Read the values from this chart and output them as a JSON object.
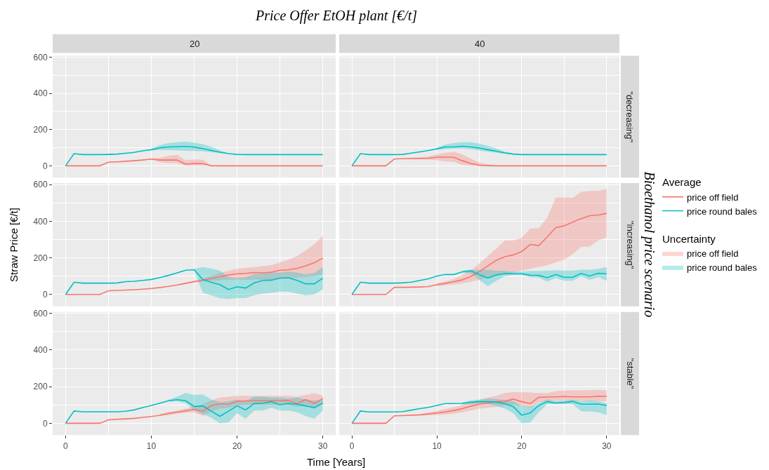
{
  "chart_data": [
    {
      "type": "line",
      "title": "20",
      "annotations": [
        "Price Offer EtOH plant [€/t]"
      ],
      "x": [
        0,
        1,
        2,
        3,
        4,
        5,
        6,
        7,
        8,
        9,
        10,
        11,
        12,
        13,
        14,
        15,
        16,
        17,
        18,
        19,
        20,
        21,
        22,
        23,
        24,
        25,
        26,
        27,
        28,
        29,
        30
      ],
      "xlim": [
        -1.5,
        31.5
      ],
      "ylim": [
        -65,
        608
      ],
      "xticks": [
        0,
        10,
        20,
        30
      ],
      "yticks": [
        0,
        200,
        400,
        600
      ],
      "grid": true,
      "tick_labels": "y",
      "legend": "right",
      "legend_title": "Average",
      "series": [
        {
          "name": "price off field",
          "color": "#f8766d",
          "values": [
            0,
            0,
            0,
            0,
            0,
            20,
            22,
            25,
            28,
            32,
            37,
            32,
            32,
            32,
            9,
            13,
            12,
            0,
            0,
            0,
            0,
            0,
            0,
            0,
            0,
            0,
            0,
            0,
            0,
            0,
            0
          ],
          "lower": [
            null,
            null,
            null,
            null,
            null,
            null,
            null,
            null,
            null,
            null,
            35,
            20,
            15,
            15,
            0,
            0,
            0,
            0,
            null,
            null,
            null,
            null,
            null,
            null,
            null,
            null,
            null,
            null,
            null,
            null,
            null
          ],
          "upper": [
            null,
            null,
            null,
            null,
            null,
            null,
            null,
            null,
            null,
            null,
            40,
            45,
            55,
            60,
            30,
            35,
            33,
            2,
            null,
            null,
            null,
            null,
            null,
            null,
            null,
            null,
            null,
            null,
            null,
            null,
            null
          ]
        },
        {
          "name": "price round bales",
          "color": "#00bfc4",
          "values": [
            0,
            67,
            62,
            62,
            62,
            63,
            65,
            69,
            74,
            83,
            89,
            99,
            104,
            105,
            107,
            103,
            95,
            85,
            75,
            67,
            63,
            62,
            62,
            62,
            62,
            62,
            62,
            62,
            62,
            62,
            62
          ],
          "lower": [
            null,
            null,
            null,
            null,
            null,
            null,
            null,
            null,
            null,
            null,
            85,
            88,
            87,
            85,
            83,
            82,
            80,
            75,
            70,
            65,
            null,
            null,
            null,
            null,
            null,
            null,
            null,
            null,
            null,
            null,
            null
          ],
          "upper": [
            null,
            null,
            null,
            null,
            null,
            null,
            null,
            null,
            null,
            null,
            95,
            115,
            125,
            130,
            133,
            128,
            120,
            105,
            85,
            70,
            null,
            null,
            null,
            null,
            null,
            null,
            null,
            null,
            null,
            null,
            null
          ]
        }
      ]
    },
    {
      "type": "line",
      "title": "40",
      "annotations": [
        "\"decreasing\""
      ],
      "x": [
        0,
        1,
        2,
        3,
        4,
        5,
        6,
        7,
        8,
        9,
        10,
        11,
        12,
        13,
        14,
        15,
        16,
        17,
        18,
        19,
        20,
        21,
        22,
        23,
        24,
        25,
        26,
        27,
        28,
        29,
        30
      ],
      "xlim": [
        -1.5,
        31.5
      ],
      "ylim": [
        -65,
        608
      ],
      "xticks": [
        0,
        10,
        20,
        30
      ],
      "yticks": [
        0,
        200,
        400,
        600
      ],
      "grid": true,
      "tick_labels": false,
      "legend": "right",
      "legend_title": "Uncertainty",
      "series": [
        {
          "name": "price off field",
          "color": "#f8766d",
          "values": [
            0,
            0,
            0,
            0,
            0,
            38,
            39,
            40,
            41,
            42,
            48,
            48,
            47,
            28,
            13,
            3,
            1,
            0,
            0,
            0,
            0,
            0,
            0,
            0,
            0,
            0,
            0,
            0,
            0,
            0,
            0
          ],
          "lower": [
            null,
            null,
            null,
            null,
            null,
            null,
            36,
            36,
            35,
            33,
            30,
            25,
            22,
            5,
            0,
            0,
            0,
            0,
            null,
            null,
            null,
            null,
            null,
            null,
            null,
            null,
            null,
            null,
            null,
            null,
            null
          ],
          "upper": [
            null,
            null,
            null,
            null,
            null,
            null,
            42,
            44,
            47,
            52,
            62,
            72,
            78,
            62,
            40,
            18,
            8,
            1,
            null,
            null,
            null,
            null,
            null,
            null,
            null,
            null,
            null,
            null,
            null,
            null,
            null
          ]
        },
        {
          "name": "price round bales",
          "color": "#00bfc4",
          "values": [
            0,
            67,
            62,
            62,
            62,
            62,
            63,
            70,
            77,
            85,
            94,
            104,
            104,
            108,
            104,
            98,
            89,
            81,
            71,
            65,
            62,
            62,
            62,
            62,
            62,
            62,
            62,
            62,
            62,
            62,
            62
          ],
          "lower": [
            null,
            null,
            null,
            null,
            null,
            null,
            null,
            null,
            null,
            null,
            88,
            92,
            95,
            95,
            92,
            85,
            78,
            72,
            66,
            63,
            null,
            null,
            null,
            null,
            null,
            null,
            null,
            null,
            null,
            null,
            null
          ],
          "upper": [
            null,
            null,
            null,
            null,
            null,
            null,
            null,
            null,
            null,
            null,
            100,
            118,
            125,
            130,
            130,
            122,
            110,
            95,
            78,
            68,
            null,
            null,
            null,
            null,
            null,
            null,
            null,
            null,
            null,
            null,
            null
          ]
        }
      ]
    },
    {
      "type": "line",
      "ylabel": "Straw Price [€/t]",
      "x": [
        0,
        1,
        2,
        3,
        4,
        5,
        6,
        7,
        8,
        9,
        10,
        11,
        12,
        13,
        14,
        15,
        16,
        17,
        18,
        19,
        20,
        21,
        22,
        23,
        24,
        25,
        26,
        27,
        28,
        29,
        30
      ],
      "xlim": [
        -1.5,
        31.5
      ],
      "ylim": [
        -65,
        608
      ],
      "xticks": [
        0,
        10,
        20,
        30
      ],
      "yticks": [
        0,
        200,
        400,
        600
      ],
      "grid": true,
      "tick_labels": "y",
      "series": [
        {
          "color": "#f8766d",
          "values": [
            0,
            0,
            0,
            0,
            0,
            20,
            22,
            24,
            26,
            29,
            33,
            38,
            44,
            52,
            61,
            70,
            77,
            87,
            97,
            106,
            113,
            115,
            120,
            118,
            122,
            132,
            135,
            142,
            156,
            173,
            199
          ],
          "lower": [
            null,
            null,
            null,
            null,
            null,
            null,
            null,
            null,
            null,
            null,
            null,
            null,
            null,
            50,
            58,
            65,
            70,
            75,
            78,
            80,
            82,
            80,
            82,
            80,
            80,
            85,
            88,
            92,
            95,
            100,
            110
          ],
          "upper": [
            null,
            null,
            null,
            null,
            null,
            null,
            null,
            null,
            null,
            null,
            null,
            null,
            null,
            55,
            65,
            75,
            88,
            102,
            118,
            130,
            140,
            145,
            150,
            155,
            160,
            175,
            190,
            210,
            240,
            275,
            320
          ]
        },
        {
          "color": "#00bfc4",
          "values": [
            0,
            67,
            62,
            62,
            62,
            62,
            63,
            70,
            72,
            77,
            82,
            92,
            104,
            118,
            132,
            135,
            82,
            66,
            54,
            27,
            42,
            35,
            63,
            77,
            78,
            89,
            91,
            77,
            58,
            58,
            89
          ],
          "lower": [
            null,
            null,
            null,
            null,
            null,
            null,
            null,
            null,
            null,
            null,
            null,
            null,
            null,
            null,
            null,
            130,
            10,
            -5,
            -20,
            -25,
            -20,
            -20,
            -5,
            5,
            10,
            15,
            15,
            5,
            -5,
            0,
            29
          ],
          "upper": [
            null,
            null,
            null,
            null,
            null,
            null,
            null,
            null,
            null,
            null,
            null,
            null,
            null,
            null,
            null,
            140,
            150,
            142,
            130,
            95,
            90,
            95,
            110,
            115,
            120,
            120,
            125,
            120,
            110,
            118,
            150
          ]
        }
      ]
    },
    {
      "type": "line",
      "annotations": [
        "\"increasing\"",
        "Bioethanol price scenario"
      ],
      "x": [
        0,
        1,
        2,
        3,
        4,
        5,
        6,
        7,
        8,
        9,
        10,
        11,
        12,
        13,
        14,
        15,
        16,
        17,
        18,
        19,
        20,
        21,
        22,
        23,
        24,
        25,
        26,
        27,
        28,
        29,
        30
      ],
      "xlim": [
        -1.5,
        31.5
      ],
      "ylim": [
        -65,
        608
      ],
      "xticks": [
        0,
        10,
        20,
        30
      ],
      "yticks": [
        0,
        200,
        400,
        600
      ],
      "grid": true,
      "tick_labels": false,
      "series": [
        {
          "color": "#f8766d",
          "values": [
            0,
            0,
            0,
            0,
            0,
            39,
            39,
            40,
            41,
            43,
            54,
            61,
            70,
            80,
            99,
            124,
            156,
            187,
            206,
            216,
            235,
            273,
            267,
            314,
            365,
            375,
            396,
            414,
            430,
            434,
            443
          ],
          "lower": [
            null,
            null,
            null,
            null,
            null,
            null,
            null,
            null,
            null,
            null,
            45,
            50,
            55,
            60,
            70,
            80,
            95,
            105,
            110,
            120,
            130,
            140,
            150,
            160,
            175,
            190,
            220,
            260,
            262,
            295,
            310
          ],
          "upper": [
            null,
            null,
            null,
            null,
            null,
            null,
            null,
            null,
            null,
            null,
            60,
            70,
            85,
            105,
            130,
            170,
            210,
            250,
            295,
            295,
            310,
            360,
            362,
            420,
            530,
            530,
            528,
            560,
            565,
            565,
            578
          ]
        },
        {
          "color": "#00bfc4",
          "values": [
            0,
            67,
            62,
            62,
            62,
            62,
            64,
            67,
            77,
            85,
            101,
            109,
            109,
            124,
            129,
            108,
            90,
            106,
            114,
            113,
            113,
            105,
            104,
            92,
            109,
            94,
            94,
            115,
            101,
            116,
            113
          ],
          "lower": [
            null,
            null,
            null,
            null,
            null,
            null,
            null,
            null,
            null,
            null,
            null,
            null,
            null,
            118,
            115,
            80,
            45,
            75,
            100,
            105,
            105,
            95,
            92,
            70,
            90,
            75,
            75,
            100,
            80,
            95,
            75
          ],
          "upper": [
            null,
            null,
            null,
            null,
            null,
            null,
            null,
            null,
            null,
            null,
            null,
            null,
            null,
            130,
            135,
            135,
            135,
            130,
            128,
            125,
            125,
            128,
            128,
            130,
            132,
            130,
            130,
            135,
            135,
            140,
            150
          ]
        }
      ]
    },
    {
      "type": "line",
      "xlabel": "Time [Years]",
      "x": [
        0,
        1,
        2,
        3,
        4,
        5,
        6,
        7,
        8,
        9,
        10,
        11,
        12,
        13,
        14,
        15,
        16,
        17,
        18,
        19,
        20,
        21,
        22,
        23,
        24,
        25,
        26,
        27,
        28,
        29,
        30
      ],
      "xlim": [
        -1.5,
        31.5
      ],
      "ylim": [
        -65,
        608
      ],
      "xticks": [
        0,
        10,
        20,
        30
      ],
      "yticks": [
        0,
        200,
        400,
        600
      ],
      "grid": true,
      "series": [
        {
          "color": "#f8766d",
          "values": [
            0,
            0,
            0,
            0,
            0,
            19,
            22,
            24,
            27,
            32,
            37,
            44,
            53,
            61,
            68,
            76,
            66,
            97,
            106,
            103,
            120,
            122,
            123,
            123,
            123,
            123,
            124,
            108,
            129,
            108,
            135
          ],
          "lower": [
            null,
            null,
            null,
            null,
            null,
            null,
            null,
            null,
            null,
            null,
            null,
            40,
            45,
            52,
            58,
            60,
            40,
            65,
            80,
            85,
            95,
            100,
            100,
            100,
            100,
            100,
            100,
            90,
            100,
            80,
            110
          ],
          "upper": [
            null,
            null,
            null,
            null,
            null,
            null,
            null,
            null,
            null,
            null,
            null,
            50,
            62,
            70,
            80,
            92,
            105,
            125,
            140,
            145,
            150,
            150,
            150,
            150,
            150,
            150,
            150,
            145,
            155,
            165,
            150
          ]
        },
        {
          "color": "#00bfc4",
          "values": [
            0,
            67,
            63,
            63,
            63,
            63,
            63,
            66,
            73,
            86,
            97,
            110,
            123,
            129,
            123,
            92,
            95,
            66,
            38,
            66,
            95,
            73,
            108,
            110,
            118,
            101,
            108,
            104,
            95,
            85,
            110
          ],
          "lower": [
            null,
            null,
            null,
            null,
            null,
            null,
            null,
            null,
            null,
            null,
            null,
            null,
            118,
            120,
            110,
            70,
            50,
            30,
            0,
            5,
            55,
            25,
            70,
            70,
            85,
            70,
            70,
            60,
            40,
            25,
            70
          ],
          "upper": [
            null,
            null,
            null,
            null,
            null,
            null,
            null,
            null,
            null,
            null,
            null,
            null,
            128,
            145,
            165,
            155,
            158,
            130,
            115,
            120,
            130,
            120,
            145,
            145,
            140,
            140,
            135,
            140,
            130,
            125,
            130
          ]
        }
      ]
    },
    {
      "type": "line",
      "annotations": [
        "\"stable\""
      ],
      "x": [
        0,
        1,
        2,
        3,
        4,
        5,
        6,
        7,
        8,
        9,
        10,
        11,
        12,
        13,
        14,
        15,
        16,
        17,
        18,
        19,
        20,
        21,
        22,
        23,
        24,
        25,
        26,
        27,
        28,
        29,
        30
      ],
      "xlim": [
        -1.5,
        31.5
      ],
      "ylim": [
        -65,
        608
      ],
      "xticks": [
        0,
        10,
        20,
        30
      ],
      "yticks": [
        0,
        200,
        400,
        600
      ],
      "grid": true,
      "tick_labels": "x",
      "series": [
        {
          "color": "#f8766d",
          "values": [
            0,
            0,
            0,
            0,
            0,
            41,
            42,
            44,
            46,
            51,
            56,
            62,
            70,
            80,
            94,
            104,
            111,
            118,
            120,
            132,
            118,
            108,
            142,
            143,
            144,
            146,
            144,
            144,
            144,
            148,
            147
          ],
          "lower": [
            null,
            null,
            null,
            null,
            null,
            null,
            null,
            null,
            42,
            45,
            45,
            48,
            52,
            60,
            70,
            80,
            85,
            90,
            95,
            100,
            95,
            85,
            115,
            120,
            122,
            122,
            122,
            122,
            122,
            120,
            120
          ],
          "upper": [
            null,
            null,
            null,
            null,
            null,
            null,
            null,
            null,
            50,
            57,
            68,
            78,
            88,
            100,
            115,
            130,
            140,
            150,
            165,
            170,
            170,
            168,
            165,
            165,
            175,
            180,
            180,
            180,
            182,
            182,
            180
          ]
        },
        {
          "color": "#00bfc4",
          "values": [
            0,
            67,
            62,
            62,
            62,
            62,
            64,
            72,
            80,
            87,
            97,
            108,
            108,
            109,
            115,
            118,
            118,
            115,
            108,
            91,
            44,
            57,
            97,
            118,
            111,
            114,
            119,
            104,
            104,
            105,
            97
          ],
          "lower": [
            null,
            null,
            null,
            null,
            null,
            null,
            null,
            null,
            null,
            null,
            null,
            null,
            null,
            100,
            105,
            108,
            105,
            95,
            80,
            55,
            0,
            5,
            60,
            105,
            105,
            105,
            105,
            65,
            65,
            60,
            45
          ],
          "upper": [
            null,
            null,
            null,
            null,
            null,
            null,
            null,
            null,
            null,
            null,
            null,
            null,
            null,
            115,
            125,
            128,
            135,
            132,
            128,
            120,
            95,
            90,
            110,
            130,
            120,
            122,
            128,
            120,
            125,
            120,
            110
          ]
        }
      ]
    }
  ]
}
